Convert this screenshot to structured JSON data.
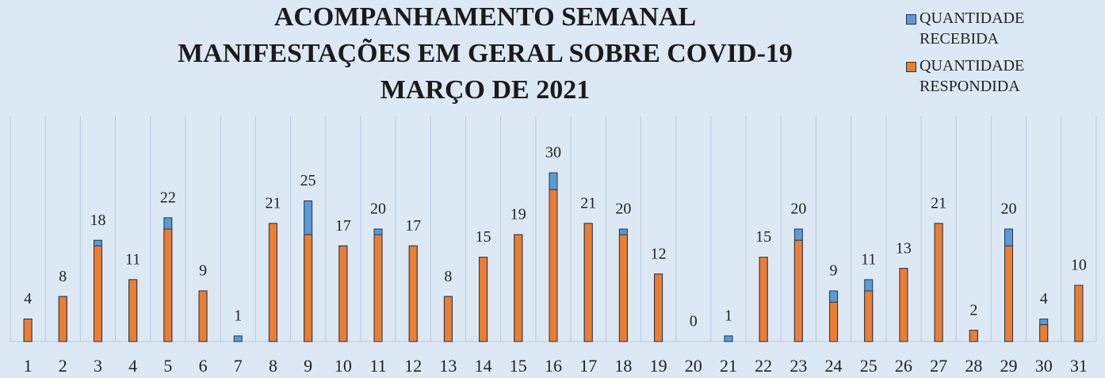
{
  "chart_data": {
    "type": "bar",
    "title": [
      "ACOMPANHAMENTO SEMANAL",
      "MANIFESTAÇÕES EM GERAL SOBRE COVID-19",
      "MARÇO DE 2021"
    ],
    "categories": [
      "1",
      "2",
      "3",
      "4",
      "5",
      "6",
      "7",
      "8",
      "9",
      "10",
      "11",
      "12",
      "13",
      "14",
      "15",
      "16",
      "17",
      "18",
      "19",
      "20",
      "21",
      "22",
      "23",
      "24",
      "25",
      "26",
      "27",
      "28",
      "29",
      "30",
      "31"
    ],
    "series": [
      {
        "name": "QUANTIDADE RECEBIDA",
        "color": "#5b9bd5",
        "values": [
          4,
          8,
          18,
          11,
          22,
          9,
          1,
          21,
          25,
          17,
          20,
          17,
          8,
          15,
          19,
          30,
          21,
          20,
          12,
          0,
          1,
          15,
          20,
          9,
          11,
          13,
          21,
          2,
          20,
          4,
          10
        ]
      },
      {
        "name": "QUANTIDADE RESPONDIDA",
        "color": "#ed7d31",
        "values": [
          4,
          8,
          17,
          11,
          20,
          9,
          0,
          21,
          19,
          17,
          19,
          17,
          8,
          15,
          19,
          27,
          21,
          19,
          12,
          0,
          0,
          15,
          18,
          7,
          9,
          13,
          21,
          2,
          17,
          3,
          10
        ]
      }
    ],
    "ylim": [
      0,
      40
    ],
    "grid": true,
    "legend": "top-right"
  }
}
